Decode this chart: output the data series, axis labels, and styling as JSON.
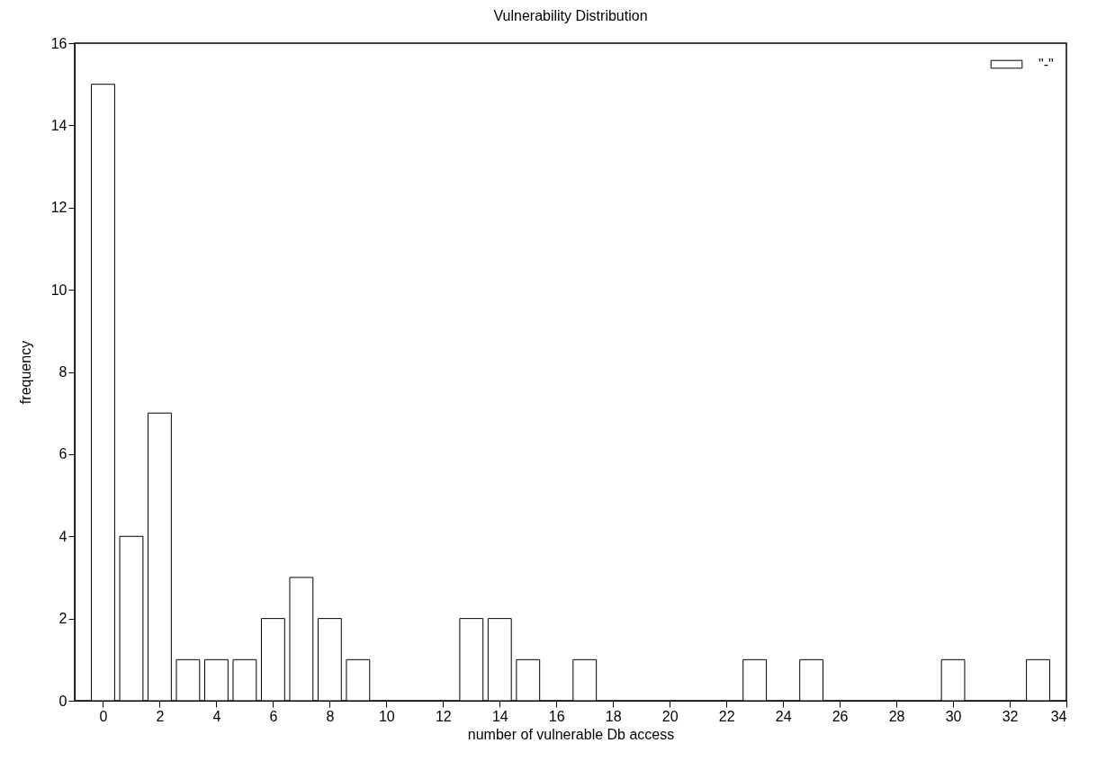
{
  "chart_data": {
    "type": "bar",
    "title": "Vulnerability Distribution",
    "xlabel": "number of vulnerable Db access",
    "ylabel": "frequency",
    "x": [
      0,
      1,
      2,
      3,
      4,
      5,
      6,
      7,
      8,
      9,
      13,
      14,
      15,
      17,
      23,
      25,
      30,
      33
    ],
    "series": [
      {
        "name": "\"-\"",
        "color": "#ffffff",
        "values": [
          15,
          4,
          7,
          1,
          1,
          1,
          2,
          3,
          2,
          1,
          2,
          2,
          1,
          1,
          1,
          1,
          1,
          1
        ]
      }
    ],
    "xlim": [
      -1,
      34
    ],
    "xticks": [
      0,
      2,
      4,
      6,
      8,
      10,
      12,
      14,
      16,
      18,
      20,
      22,
      24,
      26,
      28,
      30,
      32,
      34
    ],
    "ylim": [
      0,
      16
    ],
    "yticks": [
      0,
      2,
      4,
      6,
      8,
      10,
      12,
      14,
      16
    ],
    "grid": false,
    "legend": "top right"
  }
}
